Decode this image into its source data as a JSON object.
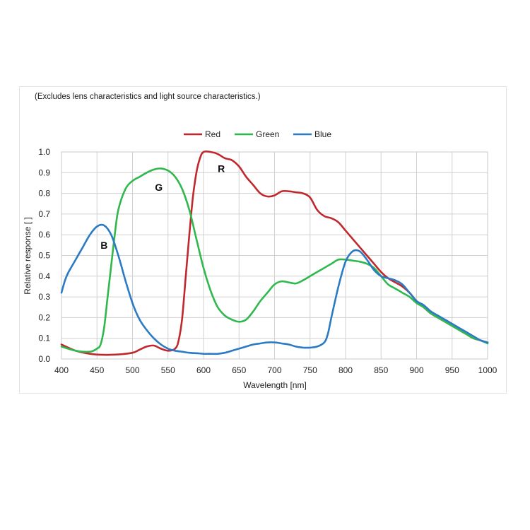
{
  "note": "(Excludes lens characteristics and light source characteristics.)",
  "chart_data": {
    "type": "line",
    "xlabel": "Wavelength [nm]",
    "ylabel": "Relative response [ ]",
    "xlim": [
      400,
      1000
    ],
    "ylim": [
      0,
      1.0
    ],
    "xticks": [
      "400",
      "450",
      "500",
      "550",
      "600",
      "650",
      "700",
      "750",
      "800",
      "850",
      "900",
      "950",
      "1000"
    ],
    "yticks": [
      "0.0",
      "0.1",
      "0.2",
      "0.3",
      "0.4",
      "0.5",
      "0.6",
      "0.7",
      "0.8",
      "0.9",
      "1.0"
    ],
    "grid": true,
    "legend_position": "top-center",
    "series": [
      {
        "name": "Red",
        "color": "#c0282d",
        "label": "R",
        "label_at": [
          625,
          0.92
        ],
        "x": [
          400,
          420,
          440,
          460,
          480,
          500,
          510,
          520,
          530,
          540,
          550,
          560,
          565,
          570,
          575,
          580,
          585,
          590,
          595,
          600,
          610,
          620,
          630,
          640,
          650,
          660,
          670,
          680,
          690,
          700,
          710,
          720,
          730,
          740,
          750,
          760,
          770,
          780,
          790,
          800,
          810,
          820,
          830,
          840,
          850,
          860,
          870,
          880,
          890,
          900,
          910,
          920,
          930,
          940,
          950,
          960,
          970,
          980,
          990,
          1000
        ],
        "values": [
          0.07,
          0.04,
          0.025,
          0.02,
          0.022,
          0.03,
          0.045,
          0.06,
          0.065,
          0.05,
          0.04,
          0.05,
          0.09,
          0.2,
          0.4,
          0.6,
          0.78,
          0.9,
          0.97,
          1.0,
          1.0,
          0.99,
          0.97,
          0.96,
          0.93,
          0.88,
          0.84,
          0.8,
          0.785,
          0.79,
          0.81,
          0.81,
          0.805,
          0.8,
          0.78,
          0.72,
          0.69,
          0.68,
          0.66,
          0.62,
          0.58,
          0.54,
          0.5,
          0.46,
          0.42,
          0.39,
          0.37,
          0.35,
          0.32,
          0.28,
          0.25,
          0.22,
          0.2,
          0.18,
          0.16,
          0.14,
          0.12,
          0.1,
          0.09,
          0.08
        ]
      },
      {
        "name": "Green",
        "color": "#2fb84e",
        "label": "G",
        "label_at": [
          537,
          0.83
        ],
        "x": [
          400,
          420,
          440,
          450,
          455,
          460,
          465,
          470,
          475,
          480,
          490,
          500,
          510,
          520,
          530,
          540,
          550,
          560,
          570,
          580,
          590,
          600,
          610,
          620,
          630,
          640,
          650,
          660,
          670,
          680,
          690,
          700,
          710,
          720,
          730,
          740,
          750,
          760,
          770,
          780,
          790,
          800,
          810,
          820,
          830,
          840,
          850,
          860,
          870,
          880,
          890,
          900,
          910,
          920,
          930,
          940,
          950,
          960,
          970,
          980,
          990,
          1000
        ],
        "values": [
          0.06,
          0.04,
          0.035,
          0.05,
          0.07,
          0.15,
          0.3,
          0.45,
          0.6,
          0.72,
          0.82,
          0.86,
          0.88,
          0.9,
          0.915,
          0.92,
          0.91,
          0.88,
          0.82,
          0.72,
          0.58,
          0.44,
          0.33,
          0.25,
          0.21,
          0.19,
          0.18,
          0.19,
          0.23,
          0.28,
          0.32,
          0.36,
          0.375,
          0.37,
          0.365,
          0.38,
          0.4,
          0.42,
          0.44,
          0.46,
          0.48,
          0.48,
          0.475,
          0.47,
          0.46,
          0.44,
          0.4,
          0.36,
          0.34,
          0.32,
          0.3,
          0.27,
          0.25,
          0.22,
          0.2,
          0.18,
          0.16,
          0.14,
          0.12,
          0.1,
          0.09,
          0.075
        ]
      },
      {
        "name": "Blue",
        "color": "#2b7bc4",
        "label": "B",
        "label_at": [
          460,
          0.55
        ],
        "x": [
          400,
          405,
          410,
          420,
          430,
          440,
          450,
          460,
          470,
          480,
          490,
          500,
          510,
          520,
          530,
          540,
          550,
          560,
          570,
          580,
          590,
          600,
          610,
          620,
          630,
          640,
          650,
          660,
          670,
          680,
          690,
          700,
          710,
          720,
          730,
          740,
          750,
          760,
          770,
          775,
          780,
          790,
          800,
          810,
          820,
          830,
          840,
          850,
          860,
          870,
          880,
          890,
          900,
          910,
          920,
          930,
          940,
          950,
          960,
          970,
          980,
          990,
          1000
        ],
        "values": [
          0.32,
          0.38,
          0.42,
          0.48,
          0.54,
          0.6,
          0.64,
          0.645,
          0.6,
          0.5,
          0.38,
          0.27,
          0.19,
          0.14,
          0.1,
          0.07,
          0.05,
          0.04,
          0.035,
          0.03,
          0.028,
          0.025,
          0.025,
          0.025,
          0.03,
          0.04,
          0.05,
          0.06,
          0.07,
          0.075,
          0.08,
          0.08,
          0.075,
          0.07,
          0.06,
          0.055,
          0.055,
          0.06,
          0.08,
          0.12,
          0.2,
          0.35,
          0.47,
          0.52,
          0.52,
          0.48,
          0.43,
          0.4,
          0.39,
          0.38,
          0.36,
          0.32,
          0.28,
          0.26,
          0.23,
          0.21,
          0.19,
          0.17,
          0.15,
          0.13,
          0.11,
          0.09,
          0.08
        ]
      }
    ]
  }
}
